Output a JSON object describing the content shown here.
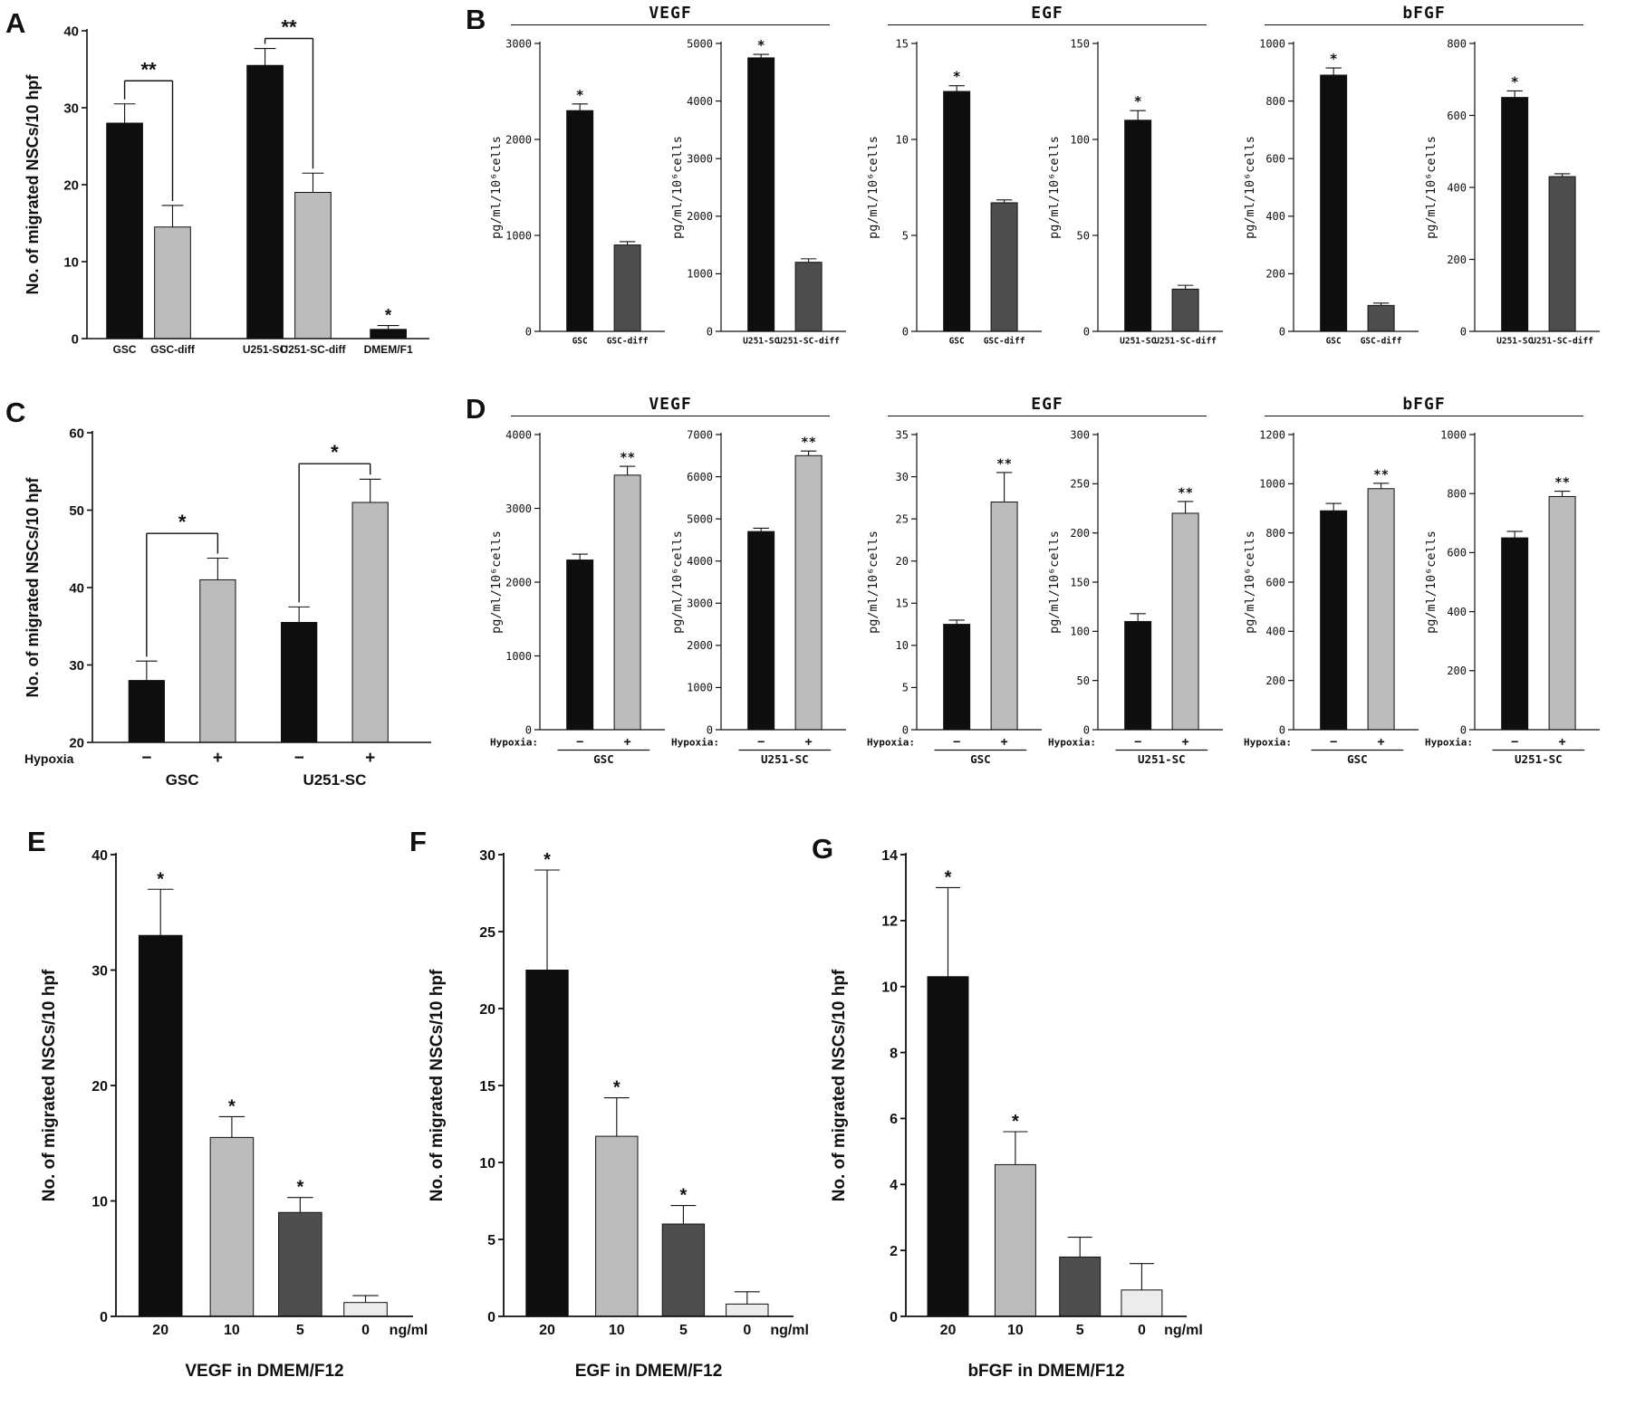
{
  "panels": {
    "A": {
      "label": "A"
    },
    "B": {
      "label": "B",
      "groups": [
        "VEGF",
        "EGF",
        "bFGF"
      ]
    },
    "C": {
      "label": "C"
    },
    "D": {
      "label": "D",
      "groups": [
        "VEGF",
        "EGF",
        "bFGF"
      ]
    },
    "E": {
      "label": "E"
    },
    "F": {
      "label": "F"
    },
    "G": {
      "label": "G"
    }
  },
  "colors": {
    "black": "#0e0e0e",
    "light": "#bcbcbc",
    "dark": "#4e4e4e",
    "pale": "#ececec"
  },
  "chart_data": {
    "A": {
      "type": "bar",
      "ylabel": "No. of migrated NSCs/10 hpf",
      "ylim": [
        0,
        40
      ],
      "yticks": [
        0,
        10,
        20,
        30,
        40
      ],
      "categories": [
        "GSC",
        "GSC-diff",
        "U251-SC",
        "U251-SC-diff",
        "DMEM/F1"
      ],
      "values": [
        28,
        14.5,
        35.5,
        19,
        1.2
      ],
      "errors": [
        2.5,
        2.8,
        2.2,
        2.5,
        0.5
      ],
      "colors": [
        "black",
        "light",
        "black",
        "light",
        "black"
      ],
      "stars": [
        "",
        "",
        "",
        "",
        "*"
      ],
      "positions": [
        0.11,
        0.25,
        0.52,
        0.66,
        0.88
      ],
      "brackets": [
        {
          "i": 0,
          "j": 1,
          "y": 33.5,
          "label": "**"
        },
        {
          "i": 2,
          "j": 3,
          "y": 39,
          "label": "**"
        }
      ]
    },
    "B_VEGF_GSC": {
      "type": "bar",
      "ylabel": "pg/ml/10⁶cells",
      "ylim": [
        0,
        3000
      ],
      "yticks": [
        0,
        1000,
        2000,
        3000
      ],
      "categories": [
        "GSC",
        "GSC-diff"
      ],
      "values": [
        2300,
        900
      ],
      "errors": [
        70,
        35
      ],
      "colors": [
        "black",
        "dark"
      ],
      "stars": [
        "*",
        ""
      ],
      "positions": [
        0.32,
        0.7
      ]
    },
    "B_VEGF_U251SC": {
      "type": "bar",
      "ylabel": "pg/ml/10⁶cells",
      "ylim": [
        0,
        5000
      ],
      "yticks": [
        0,
        1000,
        2000,
        3000,
        4000,
        5000
      ],
      "categories": [
        "U251-SC",
        "U251-SC-diff"
      ],
      "values": [
        4750,
        1200
      ],
      "errors": [
        60,
        60
      ],
      "colors": [
        "black",
        "dark"
      ],
      "stars": [
        "*",
        ""
      ],
      "positions": [
        0.32,
        0.7
      ]
    },
    "B_EGF_GSC": {
      "type": "bar",
      "ylabel": "pg/ml/10⁶cells",
      "ylim": [
        0,
        15
      ],
      "yticks": [
        0,
        5,
        10,
        15
      ],
      "categories": [
        "GSC",
        "GSC-diff"
      ],
      "values": [
        12.5,
        6.7
      ],
      "errors": [
        0.3,
        0.15
      ],
      "colors": [
        "black",
        "dark"
      ],
      "stars": [
        "*",
        ""
      ],
      "positions": [
        0.32,
        0.7
      ]
    },
    "B_EGF_U251SC": {
      "type": "bar",
      "ylabel": "pg/ml/10⁶cells",
      "ylim": [
        0,
        150
      ],
      "yticks": [
        0,
        50,
        100,
        150
      ],
      "categories": [
        "U251-SC",
        "U251-SC-diff"
      ],
      "values": [
        110,
        22
      ],
      "errors": [
        5,
        2
      ],
      "colors": [
        "black",
        "dark"
      ],
      "stars": [
        "*",
        ""
      ],
      "positions": [
        0.32,
        0.7
      ]
    },
    "B_bFGF_GSC": {
      "type": "bar",
      "ylabel": "pg/ml/10⁶cells",
      "ylim": [
        0,
        1000
      ],
      "yticks": [
        0,
        200,
        400,
        600,
        800,
        1000
      ],
      "categories": [
        "GSC",
        "GSC-diff"
      ],
      "values": [
        890,
        90
      ],
      "errors": [
        25,
        8
      ],
      "colors": [
        "black",
        "dark"
      ],
      "stars": [
        "*",
        ""
      ],
      "positions": [
        0.32,
        0.7
      ]
    },
    "B_bFGF_U251SC": {
      "type": "bar",
      "ylabel": "pg/ml/10⁶cells",
      "ylim": [
        0,
        800
      ],
      "yticks": [
        0,
        200,
        400,
        600,
        800
      ],
      "categories": [
        "U251-SC",
        "U251-SC-diff"
      ],
      "values": [
        650,
        430
      ],
      "errors": [
        18,
        8
      ],
      "colors": [
        "black",
        "dark"
      ],
      "stars": [
        "*",
        ""
      ],
      "positions": [
        0.32,
        0.7
      ]
    },
    "C": {
      "type": "bar",
      "ylabel": "No. of migrated NSCs/10 hpf",
      "ylim": [
        20,
        60
      ],
      "yticks": [
        20,
        30,
        40,
        50,
        60
      ],
      "categories": [
        "−",
        "+",
        "−",
        "+"
      ],
      "values": [
        28,
        41,
        35.5,
        51
      ],
      "errors": [
        2.5,
        2.8,
        2,
        3
      ],
      "colors": [
        "black",
        "light",
        "black",
        "light"
      ],
      "positions": [
        0.16,
        0.37,
        0.61,
        0.82
      ],
      "xprefix": "Hypoxia",
      "groups": [
        {
          "from": 0,
          "to": 1,
          "label": "GSC"
        },
        {
          "from": 2,
          "to": 3,
          "label": "U251-SC"
        }
      ],
      "brackets": [
        {
          "i": 0,
          "j": 1,
          "y": 47,
          "label": "*"
        },
        {
          "i": 2,
          "j": 3,
          "y": 56,
          "label": "*"
        }
      ]
    },
    "D_VEGF_GSC": {
      "type": "bar",
      "ylabel": "pg/ml/10⁶cells",
      "ylim": [
        0,
        4000
      ],
      "yticks": [
        0,
        1000,
        2000,
        3000,
        4000
      ],
      "categories": [
        "−",
        "+"
      ],
      "values": [
        2300,
        3450
      ],
      "errors": [
        80,
        120
      ],
      "colors": [
        "black",
        "light"
      ],
      "stars": [
        "",
        "**"
      ],
      "positions": [
        0.32,
        0.7
      ],
      "xprefix": "Hypoxia:",
      "group_overline": true,
      "groups": [
        {
          "from": 0,
          "to": 1,
          "label": "GSC"
        }
      ]
    },
    "D_VEGF_U251SC": {
      "type": "bar",
      "ylabel": "pg/ml/10⁶cells",
      "ylim": [
        0,
        7000
      ],
      "yticks": [
        0,
        1000,
        2000,
        3000,
        4000,
        5000,
        6000,
        7000
      ],
      "categories": [
        "−",
        "+"
      ],
      "values": [
        4700,
        6500
      ],
      "errors": [
        80,
        110
      ],
      "colors": [
        "black",
        "light"
      ],
      "stars": [
        "",
        "**"
      ],
      "positions": [
        0.32,
        0.7
      ],
      "xprefix": "Hypoxia:",
      "group_overline": true,
      "groups": [
        {
          "from": 0,
          "to": 1,
          "label": "U251-SC"
        }
      ]
    },
    "D_EGF_GSC": {
      "type": "bar",
      "ylabel": "pg/ml/10⁶cells",
      "ylim": [
        0,
        35
      ],
      "yticks": [
        0,
        5,
        10,
        15,
        20,
        25,
        30,
        35
      ],
      "categories": [
        "−",
        "+"
      ],
      "values": [
        12.5,
        27
      ],
      "errors": [
        0.5,
        3.5
      ],
      "colors": [
        "black",
        "light"
      ],
      "stars": [
        "",
        "**"
      ],
      "positions": [
        0.32,
        0.7
      ],
      "xprefix": "Hypoxia:",
      "group_overline": true,
      "groups": [
        {
          "from": 0,
          "to": 1,
          "label": "GSC"
        }
      ]
    },
    "D_EGF_U251SC": {
      "type": "bar",
      "ylabel": "pg/ml/10⁶cells",
      "ylim": [
        0,
        300
      ],
      "yticks": [
        0,
        50,
        100,
        150,
        200,
        250,
        300
      ],
      "categories": [
        "−",
        "+"
      ],
      "values": [
        110,
        220
      ],
      "errors": [
        8,
        12
      ],
      "colors": [
        "black",
        "light"
      ],
      "stars": [
        "",
        "**"
      ],
      "positions": [
        0.32,
        0.7
      ],
      "xprefix": "Hypoxia:",
      "group_overline": true,
      "groups": [
        {
          "from": 0,
          "to": 1,
          "label": "U251-SC"
        }
      ]
    },
    "D_bFGF_GSC": {
      "type": "bar",
      "ylabel": "pg/ml/10⁶cells",
      "ylim": [
        0,
        1200
      ],
      "yticks": [
        0,
        200,
        400,
        600,
        800,
        1000,
        1200
      ],
      "categories": [
        "−",
        "+"
      ],
      "values": [
        890,
        980
      ],
      "errors": [
        30,
        22
      ],
      "colors": [
        "black",
        "light"
      ],
      "stars": [
        "",
        "**"
      ],
      "positions": [
        0.32,
        0.7
      ],
      "xprefix": "Hypoxia:",
      "group_overline": true,
      "groups": [
        {
          "from": 0,
          "to": 1,
          "label": "GSC"
        }
      ]
    },
    "D_bFGF_U251SC": {
      "type": "bar",
      "ylabel": "pg/ml/10⁶cells",
      "ylim": [
        0,
        1000
      ],
      "yticks": [
        0,
        200,
        400,
        600,
        800,
        1000
      ],
      "categories": [
        "−",
        "+"
      ],
      "values": [
        650,
        790
      ],
      "errors": [
        22,
        18
      ],
      "colors": [
        "black",
        "light"
      ],
      "stars": [
        "",
        "**"
      ],
      "positions": [
        0.32,
        0.7
      ],
      "xprefix": "Hypoxia:",
      "group_overline": true,
      "groups": [
        {
          "from": 0,
          "to": 1,
          "label": "U251-SC"
        }
      ]
    },
    "E": {
      "type": "bar",
      "ylabel": "No. of migrated NSCs/10 hpf",
      "xlabel": "VEGF in DMEM/F12",
      "unit": "ng/ml",
      "ylim": [
        0,
        40
      ],
      "yticks": [
        0,
        10,
        20,
        30,
        40
      ],
      "categories": [
        "20",
        "10",
        "5",
        "0"
      ],
      "values": [
        33,
        15.5,
        9,
        1.2
      ],
      "errors": [
        4,
        1.8,
        1.3,
        0.6
      ],
      "colors": [
        "black",
        "light",
        "dark",
        "pale"
      ],
      "stars": [
        "*",
        "*",
        "*",
        ""
      ],
      "positions": [
        0.15,
        0.39,
        0.62,
        0.84
      ]
    },
    "F": {
      "type": "bar",
      "ylabel": "No. of migrated NSCs/10 hpf",
      "xlabel": "EGF in DMEM/F12",
      "unit": "ng/ml",
      "ylim": [
        0,
        30
      ],
      "yticks": [
        0,
        5,
        10,
        15,
        20,
        25,
        30
      ],
      "categories": [
        "20",
        "10",
        "5",
        "0"
      ],
      "values": [
        22.5,
        11.7,
        6,
        0.8
      ],
      "errors": [
        6.5,
        2.5,
        1.2,
        0.8
      ],
      "colors": [
        "black",
        "light",
        "dark",
        "pale"
      ],
      "stars": [
        "*",
        "*",
        "*",
        ""
      ],
      "positions": [
        0.15,
        0.39,
        0.62,
        0.84
      ]
    },
    "G": {
      "type": "bar",
      "ylabel": "No. of migrated NSCs/10 hpf",
      "xlabel": "bFGF in DMEM/F12",
      "unit": "ng/ml",
      "ylim": [
        0,
        14
      ],
      "yticks": [
        0,
        2,
        4,
        6,
        8,
        10,
        12,
        14
      ],
      "categories": [
        "20",
        "10",
        "5",
        "0"
      ],
      "values": [
        10.3,
        4.6,
        1.8,
        0.8
      ],
      "errors": [
        2.7,
        1,
        0.6,
        0.8
      ],
      "colors": [
        "black",
        "light",
        "dark",
        "pale"
      ],
      "stars": [
        "*",
        "*",
        "",
        ""
      ],
      "positions": [
        0.15,
        0.39,
        0.62,
        0.84
      ]
    }
  }
}
